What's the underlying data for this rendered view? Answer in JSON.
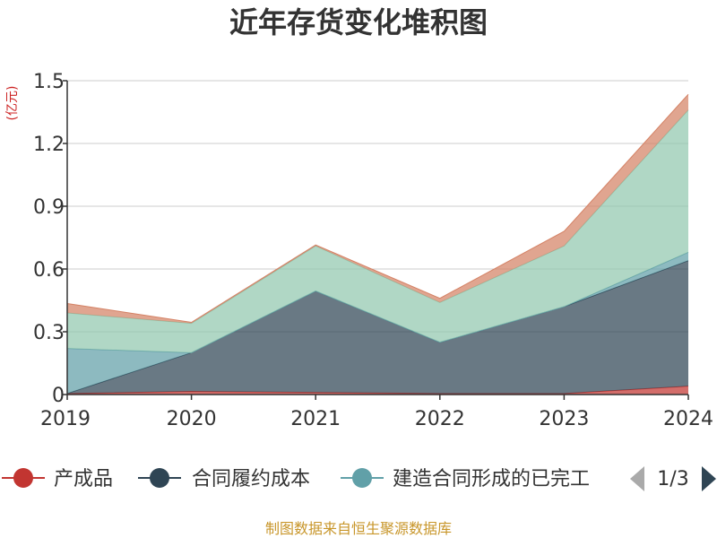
{
  "chart_data": {
    "type": "area",
    "stacked": true,
    "title": "近年存货变化堆积图",
    "ylabel": "(亿元)",
    "ylim": [
      0,
      1.5
    ],
    "yticks": [
      "0",
      "0.3",
      "0.6",
      "0.9",
      "1.2",
      "1.5"
    ],
    "categories": [
      "2019",
      "2020",
      "2021",
      "2022",
      "2023",
      "2024"
    ],
    "grid": true,
    "series": [
      {
        "name": "产成品",
        "color": "#c23531",
        "values": [
          0.005,
          0.015,
          0.01,
          0.005,
          0.005,
          0.04
        ]
      },
      {
        "name": "合同履约成本",
        "color": "#2f4554",
        "values": [
          0.0,
          0.185,
          0.485,
          0.245,
          0.415,
          0.6
        ]
      },
      {
        "name": "建造合同形成的已完工",
        "color": "#61a0a8",
        "values": [
          0.215,
          0.0,
          0.0,
          0.0,
          0.0,
          0.04
        ]
      },
      {
        "name": "",
        "color": "#91c7ae",
        "values": [
          0.17,
          0.14,
          0.215,
          0.19,
          0.29,
          0.68
        ]
      },
      {
        "name": "",
        "color": "#d48265",
        "values": [
          0.045,
          0.005,
          0.005,
          0.02,
          0.07,
          0.075
        ]
      }
    ]
  },
  "legend": {
    "items": [
      "产成品",
      "合同履约成本",
      "建造合同形成的已完工"
    ],
    "truncated_item": "建造合同形成的已完工",
    "page_indicator": "1/3"
  },
  "footer": "制图数据来自恒生聚源数据库"
}
